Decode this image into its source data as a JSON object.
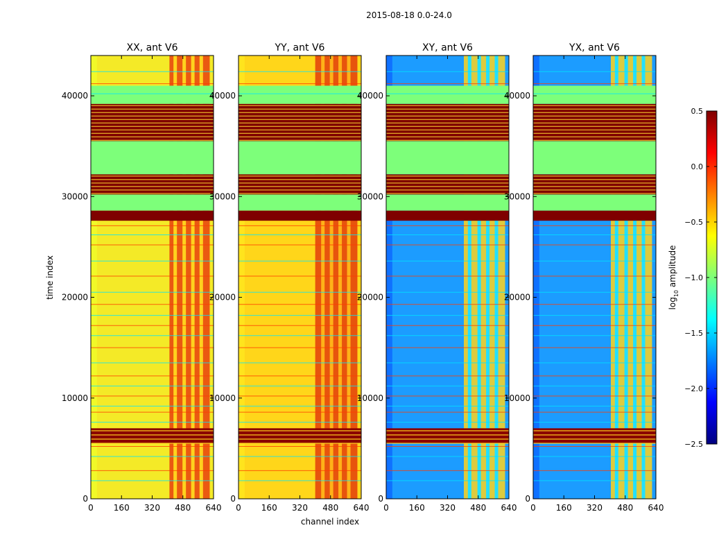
{
  "figure": {
    "suptitle": "2015-08-18 0.0-24.0",
    "xlabel": "channel index",
    "ylabel": "time index"
  },
  "colorbar": {
    "label_prefix": "log",
    "label_sub": "10",
    "label_suffix": " amplitude",
    "ticks": [
      "0.5",
      "0.0",
      "−0.5",
      "−1.0",
      "−1.5",
      "−2.0",
      "−2.5"
    ],
    "stops": [
      "#00007f",
      "#0000ff",
      "#0080ff",
      "#00ffff",
      "#7dff7a",
      "#ffff00",
      "#ff8000",
      "#ff0000",
      "#7f0000"
    ]
  },
  "chart_data": [
    {
      "type": "heatmap",
      "title": "XX, ant V6",
      "xlim": [
        0,
        640
      ],
      "ylim": [
        0,
        44000
      ],
      "xticks": [
        "0",
        "160",
        "320",
        "480",
        "640"
      ],
      "yticks": [
        "0",
        "10000",
        "20000",
        "30000",
        "40000"
      ],
      "base_color": "#f4ea27",
      "block_channels": [
        410,
        620
      ],
      "block_color": "#e8400e",
      "stripe_channels": [
        440,
        487,
        532,
        576
      ],
      "stripe_color": "#ffd21e",
      "edge_color": "#f0ff2a"
    },
    {
      "type": "heatmap",
      "title": "YY, ant V6",
      "xlim": [
        0,
        640
      ],
      "ylim": [
        0,
        44000
      ],
      "xticks": [
        "0",
        "160",
        "320",
        "480",
        "640"
      ],
      "yticks": [
        "0",
        "10000",
        "20000",
        "30000",
        "40000"
      ],
      "base_color": "#ffd61a",
      "block_channels": [
        400,
        620
      ],
      "block_color": "#e33d0c",
      "stripe_channels": [
        440,
        485,
        530,
        575
      ],
      "stripe_color": "#ffb218",
      "edge_color": "#ffea20"
    },
    {
      "type": "heatmap",
      "title": "XY, ant V6",
      "xlim": [
        0,
        640
      ],
      "ylim": [
        0,
        44000
      ],
      "xticks": [
        "0",
        "160",
        "320",
        "480",
        "640"
      ],
      "yticks": [
        "0",
        "10000",
        "20000",
        "30000",
        "40000"
      ],
      "base_color": "#1c9cff",
      "block_channels": [
        405,
        620
      ],
      "block_color": "#ffd41c",
      "stripe_channels": [
        435,
        485,
        530,
        575
      ],
      "stripe_color": "#22e0ff",
      "edge_color": "#0a60ff"
    },
    {
      "type": "heatmap",
      "title": "YX, ant V6",
      "xlim": [
        0,
        640
      ],
      "ylim": [
        0,
        44000
      ],
      "xticks": [
        "0",
        "160",
        "320",
        "480",
        "640"
      ],
      "yticks": [
        "0",
        "10000",
        "20000",
        "30000",
        "40000"
      ],
      "base_color": "#1c9cff",
      "block_channels": [
        405,
        620
      ],
      "block_color": "#ffd41c",
      "stripe_channels": [
        435,
        485,
        530,
        575
      ],
      "stripe_color": "#22e0ff",
      "edge_color": "#0a60ff"
    }
  ],
  "time_bands": [
    {
      "from": 35500,
      "to": 39200,
      "color": "#7f0000",
      "stripes": "#ffdd33"
    },
    {
      "from": 32200,
      "to": 35500,
      "color": "#7dff7a"
    },
    {
      "from": 30200,
      "to": 32200,
      "color": "#7f0000",
      "stripes": "#ffdd33"
    },
    {
      "from": 28600,
      "to": 30200,
      "color": "#7dff7a"
    },
    {
      "from": 27600,
      "to": 28600,
      "color": "#7f0000"
    },
    {
      "from": 39200,
      "to": 41000,
      "color": "#7dff7a"
    }
  ],
  "flag_band": {
    "from": 5500,
    "to": 7000,
    "color": "#8a0000"
  },
  "flag_lines_time": [
    1800,
    2800,
    4200,
    5200,
    7600,
    8600,
    9200,
    10200,
    11200,
    12200,
    13500,
    15000,
    16200,
    17200,
    18200,
    19300,
    20500,
    22100,
    23600,
    25200,
    26200,
    27100,
    40200,
    41200,
    42400
  ]
}
